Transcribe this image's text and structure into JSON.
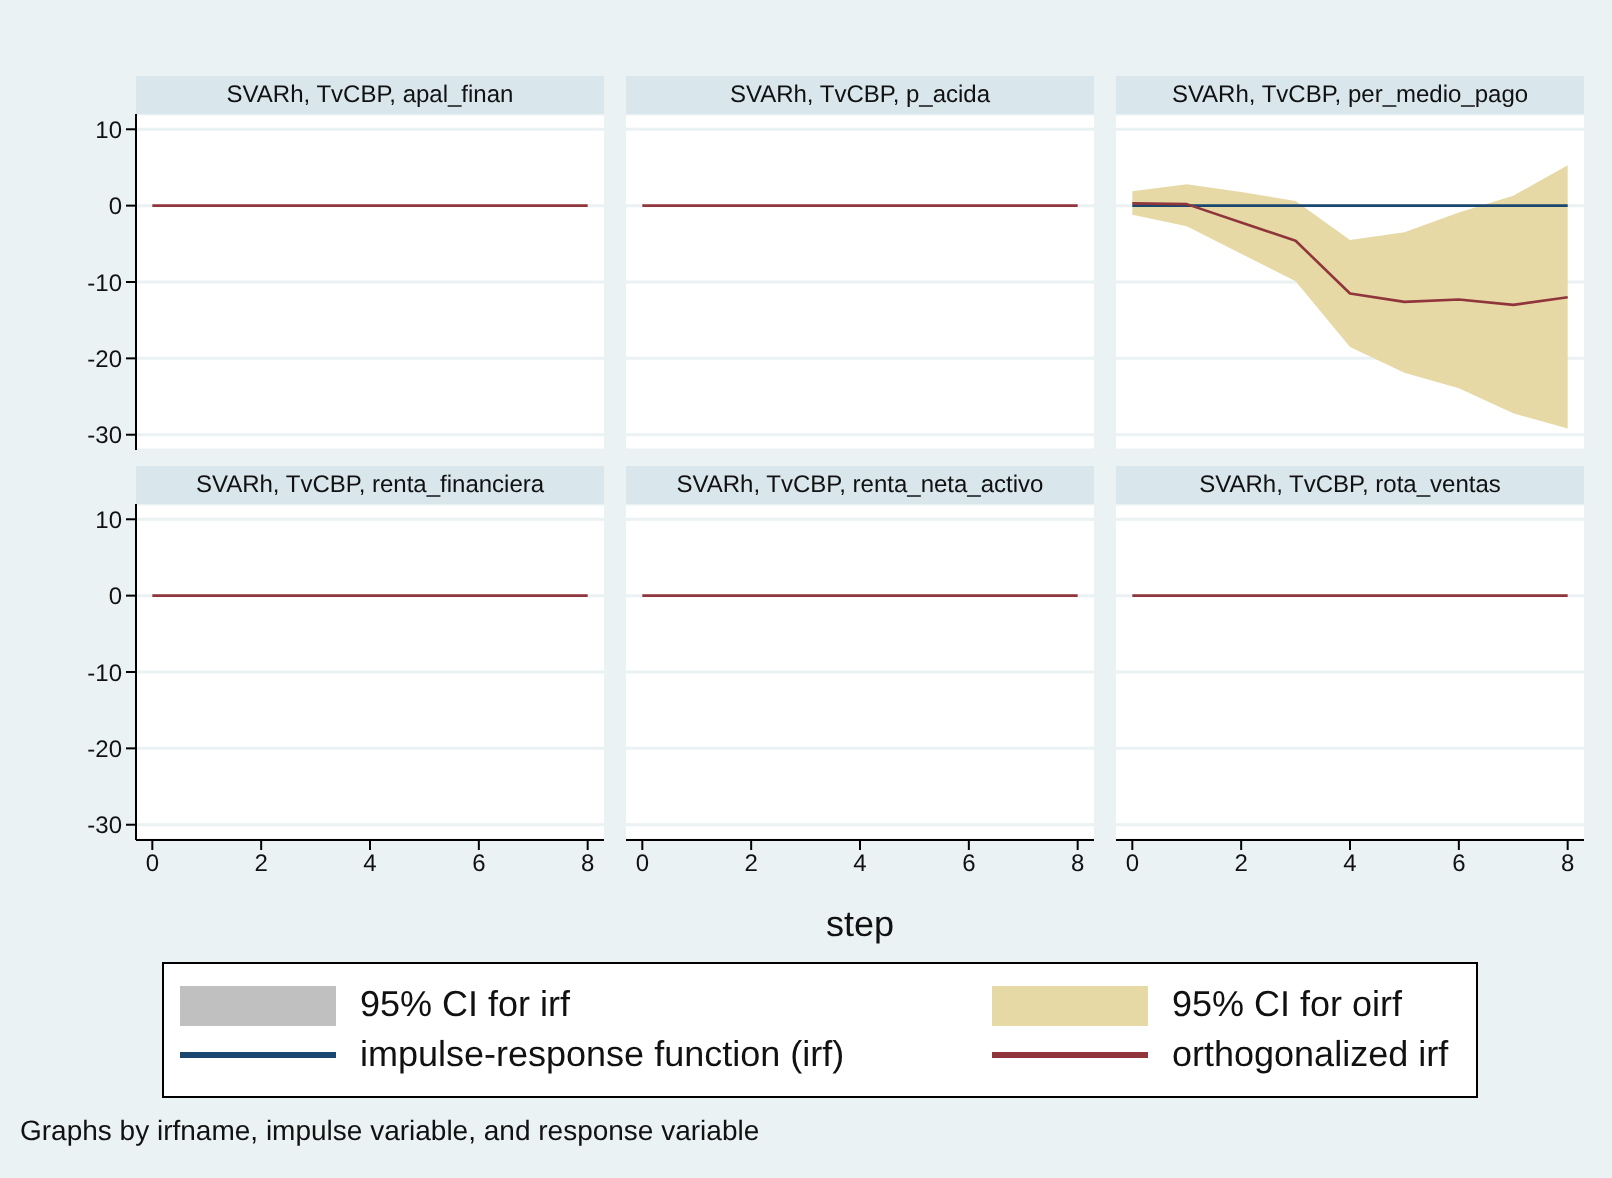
{
  "chart_data": [
    {
      "type": "line",
      "title": "SVARh, TvCBP, apal_finan",
      "x": [
        0,
        1,
        2,
        3,
        4,
        5,
        6,
        7,
        8
      ],
      "xlim": [
        -0.3,
        8.3
      ],
      "xticks": [
        0,
        2,
        4,
        6,
        8
      ],
      "ylim": [
        -32,
        12
      ],
      "yticks": [
        -30,
        -20,
        -10,
        0,
        10
      ],
      "grid": "y",
      "tick_labels": "y",
      "series": [
        {
          "type": "line",
          "color": "#90353b",
          "values": [
            0,
            0,
            0,
            0,
            0,
            0,
            0,
            0,
            0
          ]
        }
      ]
    },
    {
      "type": "line",
      "title": "SVARh, TvCBP, p_acida",
      "x": [
        0,
        1,
        2,
        3,
        4,
        5,
        6,
        7,
        8
      ],
      "xlim": [
        -0.3,
        8.3
      ],
      "xticks": [
        0,
        2,
        4,
        6,
        8
      ],
      "ylim": [
        -32,
        12
      ],
      "yticks": [
        -30,
        -20,
        -10,
        0,
        10
      ],
      "grid": "y",
      "tick_labels": false,
      "series": [
        {
          "type": "line",
          "color": "#90353b",
          "values": [
            0,
            0,
            0,
            0,
            0,
            0,
            0,
            0,
            0
          ]
        }
      ]
    },
    {
      "type": "line",
      "title": "SVARh, TvCBP, per_medio_pago",
      "legend": "bottom",
      "x": [
        0,
        1,
        2,
        3,
        4,
        5,
        6,
        7,
        8
      ],
      "xlim": [
        -0.3,
        8.3
      ],
      "xticks": [
        0,
        2,
        4,
        6,
        8
      ],
      "ylim": [
        -32,
        12
      ],
      "yticks": [
        -30,
        -20,
        -10,
        0,
        10
      ],
      "grid": "y",
      "tick_labels": false,
      "series": [
        {
          "name": "95% CI for irf",
          "type": "area",
          "color": "#c0c0c0",
          "values": [
            null,
            null,
            null,
            null,
            null,
            null,
            null,
            null,
            null
          ]
        },
        {
          "name": "95% CI for oirf",
          "type": "area",
          "color": "#e6d9a5",
          "values": [
            null,
            null,
            null,
            null,
            null,
            null,
            null,
            null,
            null
          ],
          "lower": [
            -1.2,
            -2.7,
            -6.3,
            -9.9,
            -18.5,
            -21.9,
            -23.9,
            -27.2,
            -29.2
          ],
          "upper": [
            1.9,
            2.8,
            1.8,
            0.6,
            -4.5,
            -3.5,
            -0.9,
            1.3,
            5.3
          ]
        },
        {
          "name": "impulse-response function (irf)",
          "type": "line",
          "color": "#1a476f",
          "values": [
            0,
            0,
            0,
            0,
            0,
            0,
            0,
            0,
            0
          ]
        },
        {
          "name": "orthogonalized irf",
          "type": "line",
          "color": "#90353b",
          "values": [
            0.3,
            0.2,
            -2.2,
            -4.6,
            -11.5,
            -12.6,
            -12.3,
            -13.0,
            -12.0
          ]
        }
      ]
    },
    {
      "type": "line",
      "title": "SVARh, TvCBP, renta_financiera",
      "x": [
        0,
        1,
        2,
        3,
        4,
        5,
        6,
        7,
        8
      ],
      "xlim": [
        -0.3,
        8.3
      ],
      "xticks": [
        0,
        2,
        4,
        6,
        8
      ],
      "ylim": [
        -32,
        12
      ],
      "yticks": [
        -30,
        -20,
        -10,
        0,
        10
      ],
      "grid": "y",
      "series": [
        {
          "type": "line",
          "color": "#90353b",
          "values": [
            0,
            0,
            0,
            0,
            0,
            0,
            0,
            0,
            0
          ]
        }
      ]
    },
    {
      "type": "line",
      "title": "SVARh, TvCBP, renta_neta_activo",
      "xlabel": "step",
      "annotations": [
        "Graphs by irfname, impulse variable, and response variable"
      ],
      "x": [
        0,
        1,
        2,
        3,
        4,
        5,
        6,
        7,
        8
      ],
      "xlim": [
        -0.3,
        8.3
      ],
      "xticks": [
        0,
        2,
        4,
        6,
        8
      ],
      "ylim": [
        -32,
        12
      ],
      "yticks": [
        -30,
        -20,
        -10,
        0,
        10
      ],
      "grid": "y",
      "tick_labels": "x",
      "series": [
        {
          "type": "line",
          "color": "#90353b",
          "values": [
            0,
            0,
            0,
            0,
            0,
            0,
            0,
            0,
            0
          ]
        }
      ]
    },
    {
      "type": "line",
      "title": "SVARh, TvCBP, rota_ventas",
      "x": [
        0,
        1,
        2,
        3,
        4,
        5,
        6,
        7,
        8
      ],
      "xlim": [
        -0.3,
        8.3
      ],
      "xticks": [
        0,
        2,
        4,
        6,
        8
      ],
      "ylim": [
        -32,
        12
      ],
      "yticks": [
        -30,
        -20,
        -10,
        0,
        10
      ],
      "grid": "y",
      "tick_labels": "x",
      "series": [
        {
          "type": "line",
          "color": "#90353b",
          "values": [
            0,
            0,
            0,
            0,
            0,
            0,
            0,
            0,
            0
          ]
        }
      ]
    }
  ]
}
